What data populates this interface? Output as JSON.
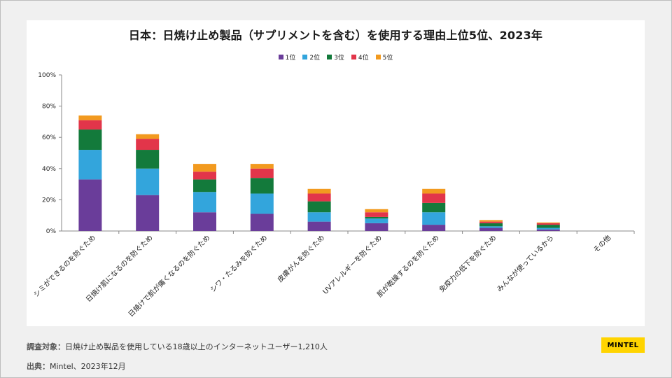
{
  "chart_data": {
    "type": "bar",
    "stacked": true,
    "title": "日本：日焼け止め製品（サプリメントを含む）を使用する理由上位5位、2023年",
    "categories": [
      "シミができるのを防ぐため",
      "日焼け肌になるのを防ぐため",
      "日焼けで肌が痛くなるのを防ぐため",
      "シワ・たるみを防ぐため",
      "皮膚がんを防ぐため",
      "UVアレルギーを防ぐため",
      "肌が乾燥するのを防ぐため",
      "免疫力の低下を防ぐため",
      "みんなが使っているから",
      "その他"
    ],
    "series": [
      {
        "name": "1位",
        "color": "#6a3d9a",
        "values": [
          33,
          23,
          12,
          11,
          6,
          5,
          4,
          2,
          1,
          0
        ]
      },
      {
        "name": "2位",
        "color": "#33a5dc",
        "values": [
          19,
          17,
          13,
          13,
          6,
          3,
          8,
          1,
          1,
          0
        ]
      },
      {
        "name": "3位",
        "color": "#137a3b",
        "values": [
          13,
          12,
          8,
          10,
          7,
          1,
          6,
          2,
          2,
          0
        ]
      },
      {
        "name": "4位",
        "color": "#e2354a",
        "values": [
          6,
          7,
          5,
          6,
          5,
          3,
          6,
          1,
          1,
          0
        ]
      },
      {
        "name": "5位",
        "color": "#f29a1f",
        "values": [
          3,
          3,
          5,
          3,
          3,
          2,
          3,
          1,
          0.5,
          0
        ]
      }
    ],
    "ylim": [
      0,
      100
    ],
    "yticks": [
      "0%",
      "20%",
      "40%",
      "60%",
      "80%",
      "100%"
    ],
    "legend_position": "top-center",
    "grid": false
  },
  "footer": {
    "survey_label": "調査対象：",
    "survey_text": "日焼け止め製品を使用している18歳以上のインターネットユーザー1,210人",
    "source_label": "出典：",
    "source_text": "Mintel、2023年12月",
    "logo_text": "MINTEL"
  }
}
